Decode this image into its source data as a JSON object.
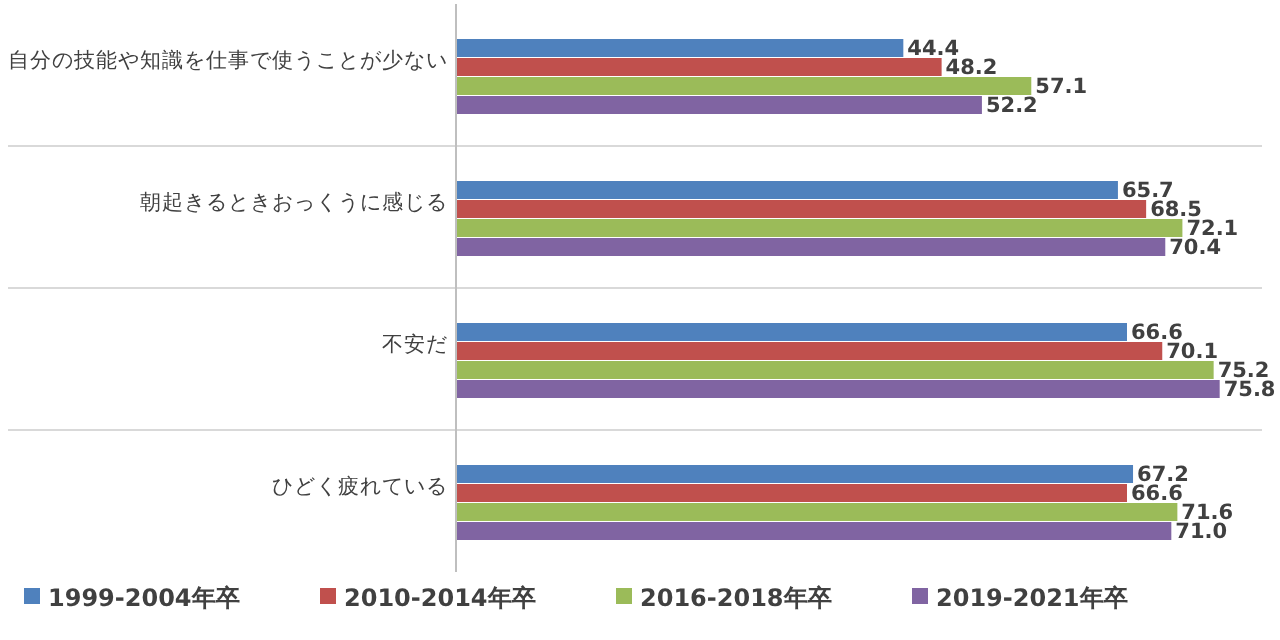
{
  "chart_data": {
    "type": "bar",
    "orientation": "horizontal",
    "categories": [
      "自分の技能や知識を仕事で使うことが少ない",
      "朝起きるときおっくうに感じる",
      "不安だ",
      "ひどく疲れている"
    ],
    "xlim": [
      0,
      80
    ],
    "tick_labels": "y",
    "grid": "y",
    "legend": "bottom",
    "series": [
      {
        "name": "1999-2004年卒",
        "color": "#4f81bd",
        "values": [
          44.4,
          65.7,
          66.6,
          67.2
        ],
        "value_labels": [
          "44.4",
          "65.7",
          "66.6",
          "67.2"
        ]
      },
      {
        "name": "2010-2014年卒",
        "color": "#c0504d",
        "values": [
          48.2,
          68.5,
          70.1,
          66.6
        ],
        "value_labels": [
          "48.2",
          "68.5",
          "70.1",
          "66.6"
        ]
      },
      {
        "name": "2016-2018年卒",
        "color": "#9bbb59",
        "values": [
          57.1,
          72.1,
          75.2,
          71.6
        ],
        "value_labels": [
          "57.1",
          "72.1",
          "75.2",
          "71.6"
        ]
      },
      {
        "name": "2019-2021年卒",
        "color": "#8064a2",
        "values": [
          52.2,
          70.4,
          75.8,
          71
        ],
        "value_labels": [
          "52.2",
          "70.4",
          "75.8",
          "71.0"
        ]
      }
    ]
  }
}
